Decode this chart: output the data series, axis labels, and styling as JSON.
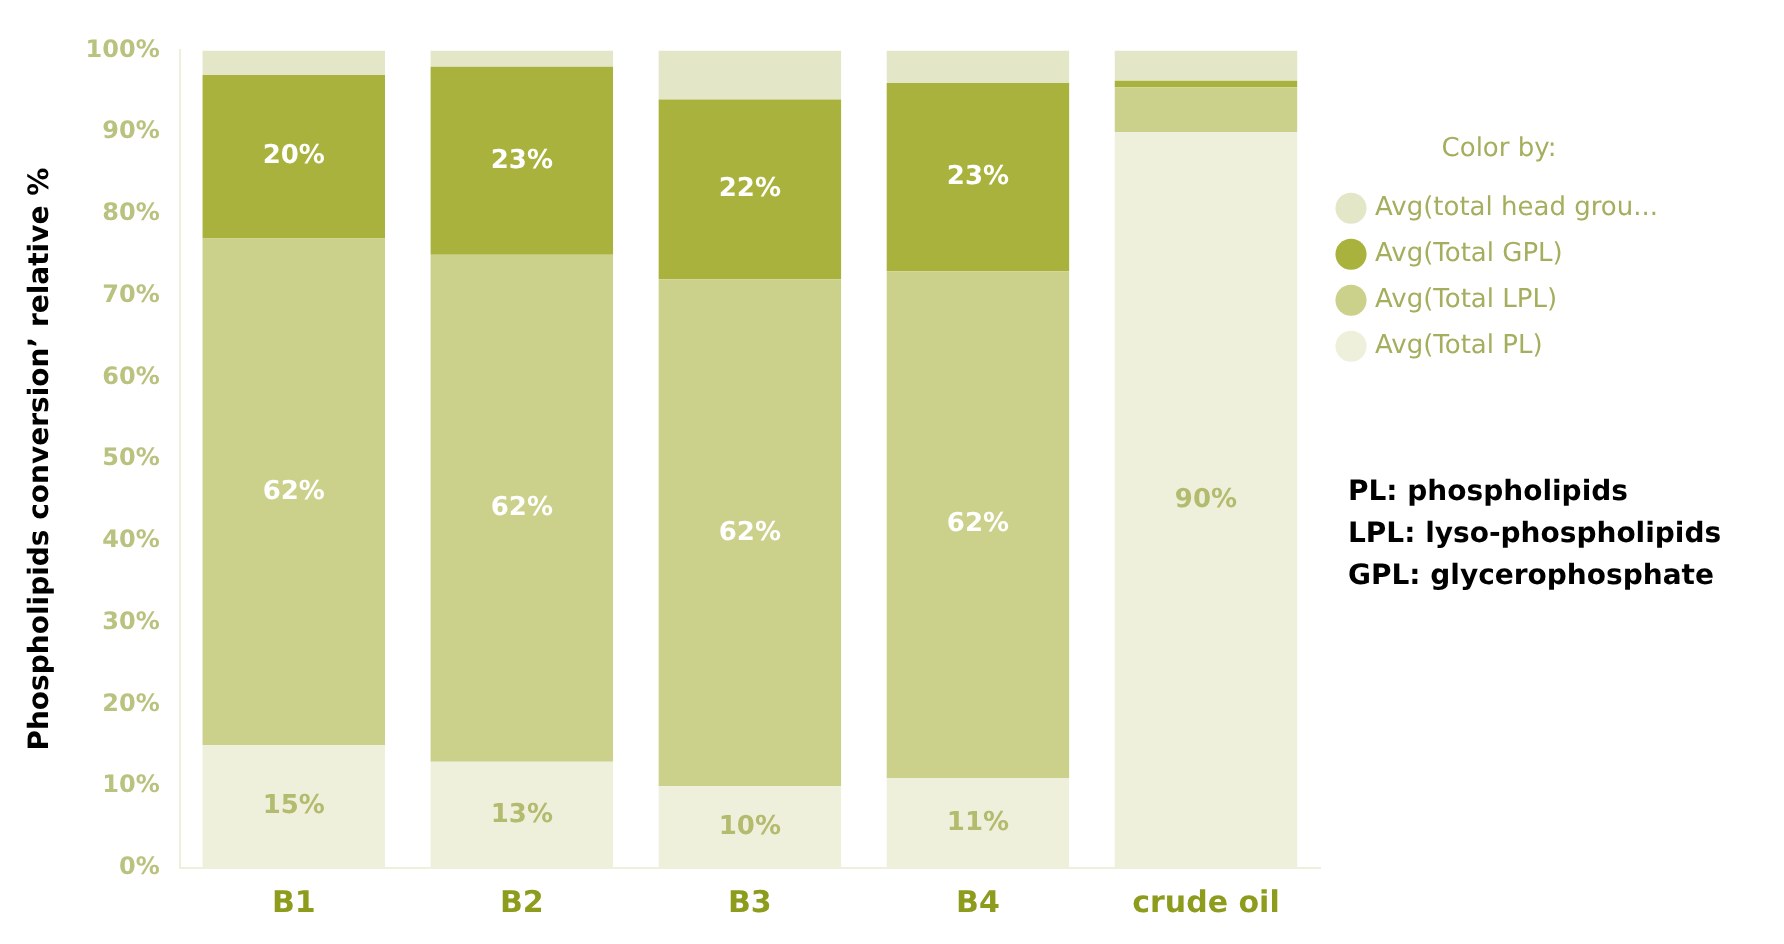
{
  "chart_data": {
    "type": "bar",
    "stacked": true,
    "categories": [
      "B1",
      "B2",
      "B3",
      "B4",
      "crude oil"
    ],
    "ylabel": "Phospholipids conversion’ relative %",
    "legend_title": "Color by:",
    "ylim": [
      0,
      100
    ],
    "yticks": [
      {
        "value": 0,
        "label": "0%"
      },
      {
        "value": 10,
        "label": "10%"
      },
      {
        "value": 20,
        "label": "20%"
      },
      {
        "value": 30,
        "label": "30%"
      },
      {
        "value": 40,
        "label": "40%"
      },
      {
        "value": 50,
        "label": "50%"
      },
      {
        "value": 60,
        "label": "60%"
      },
      {
        "value": 70,
        "label": "70%"
      },
      {
        "value": 80,
        "label": "80%"
      },
      {
        "value": 90,
        "label": "90%"
      },
      {
        "value": 100,
        "label": "100%"
      }
    ],
    "series": [
      {
        "name": "Avg(Total PL)",
        "color": "#eef0dc",
        "values": [
          15,
          13,
          10,
          11,
          90
        ],
        "value_labels": [
          "15%",
          "13%",
          "10%",
          "11%",
          "90%"
        ]
      },
      {
        "name": "Avg(Total LPL)",
        "color": "#cbd08a",
        "values": [
          62,
          62,
          62,
          62,
          5.5
        ],
        "value_labels": [
          "62%",
          "62%",
          "62%",
          "62%",
          null
        ]
      },
      {
        "name": "Avg(Total GPL)",
        "color": "#a8b23c",
        "values": [
          20,
          23,
          22,
          23,
          0.8
        ],
        "value_labels": [
          "20%",
          "23%",
          "22%",
          "23%",
          null
        ]
      },
      {
        "name": "Avg(total head grou...",
        "color": "#e3e7c8",
        "values": [
          3,
          2,
          6,
          4,
          3.7
        ],
        "value_labels": [
          null,
          null,
          null,
          null,
          null
        ]
      }
    ],
    "grid": false,
    "legend": "right",
    "annotations": [
      "PL: phospholipids",
      "LPL: lyso-phospholipids",
      "GPL: glycerophosphate"
    ]
  }
}
